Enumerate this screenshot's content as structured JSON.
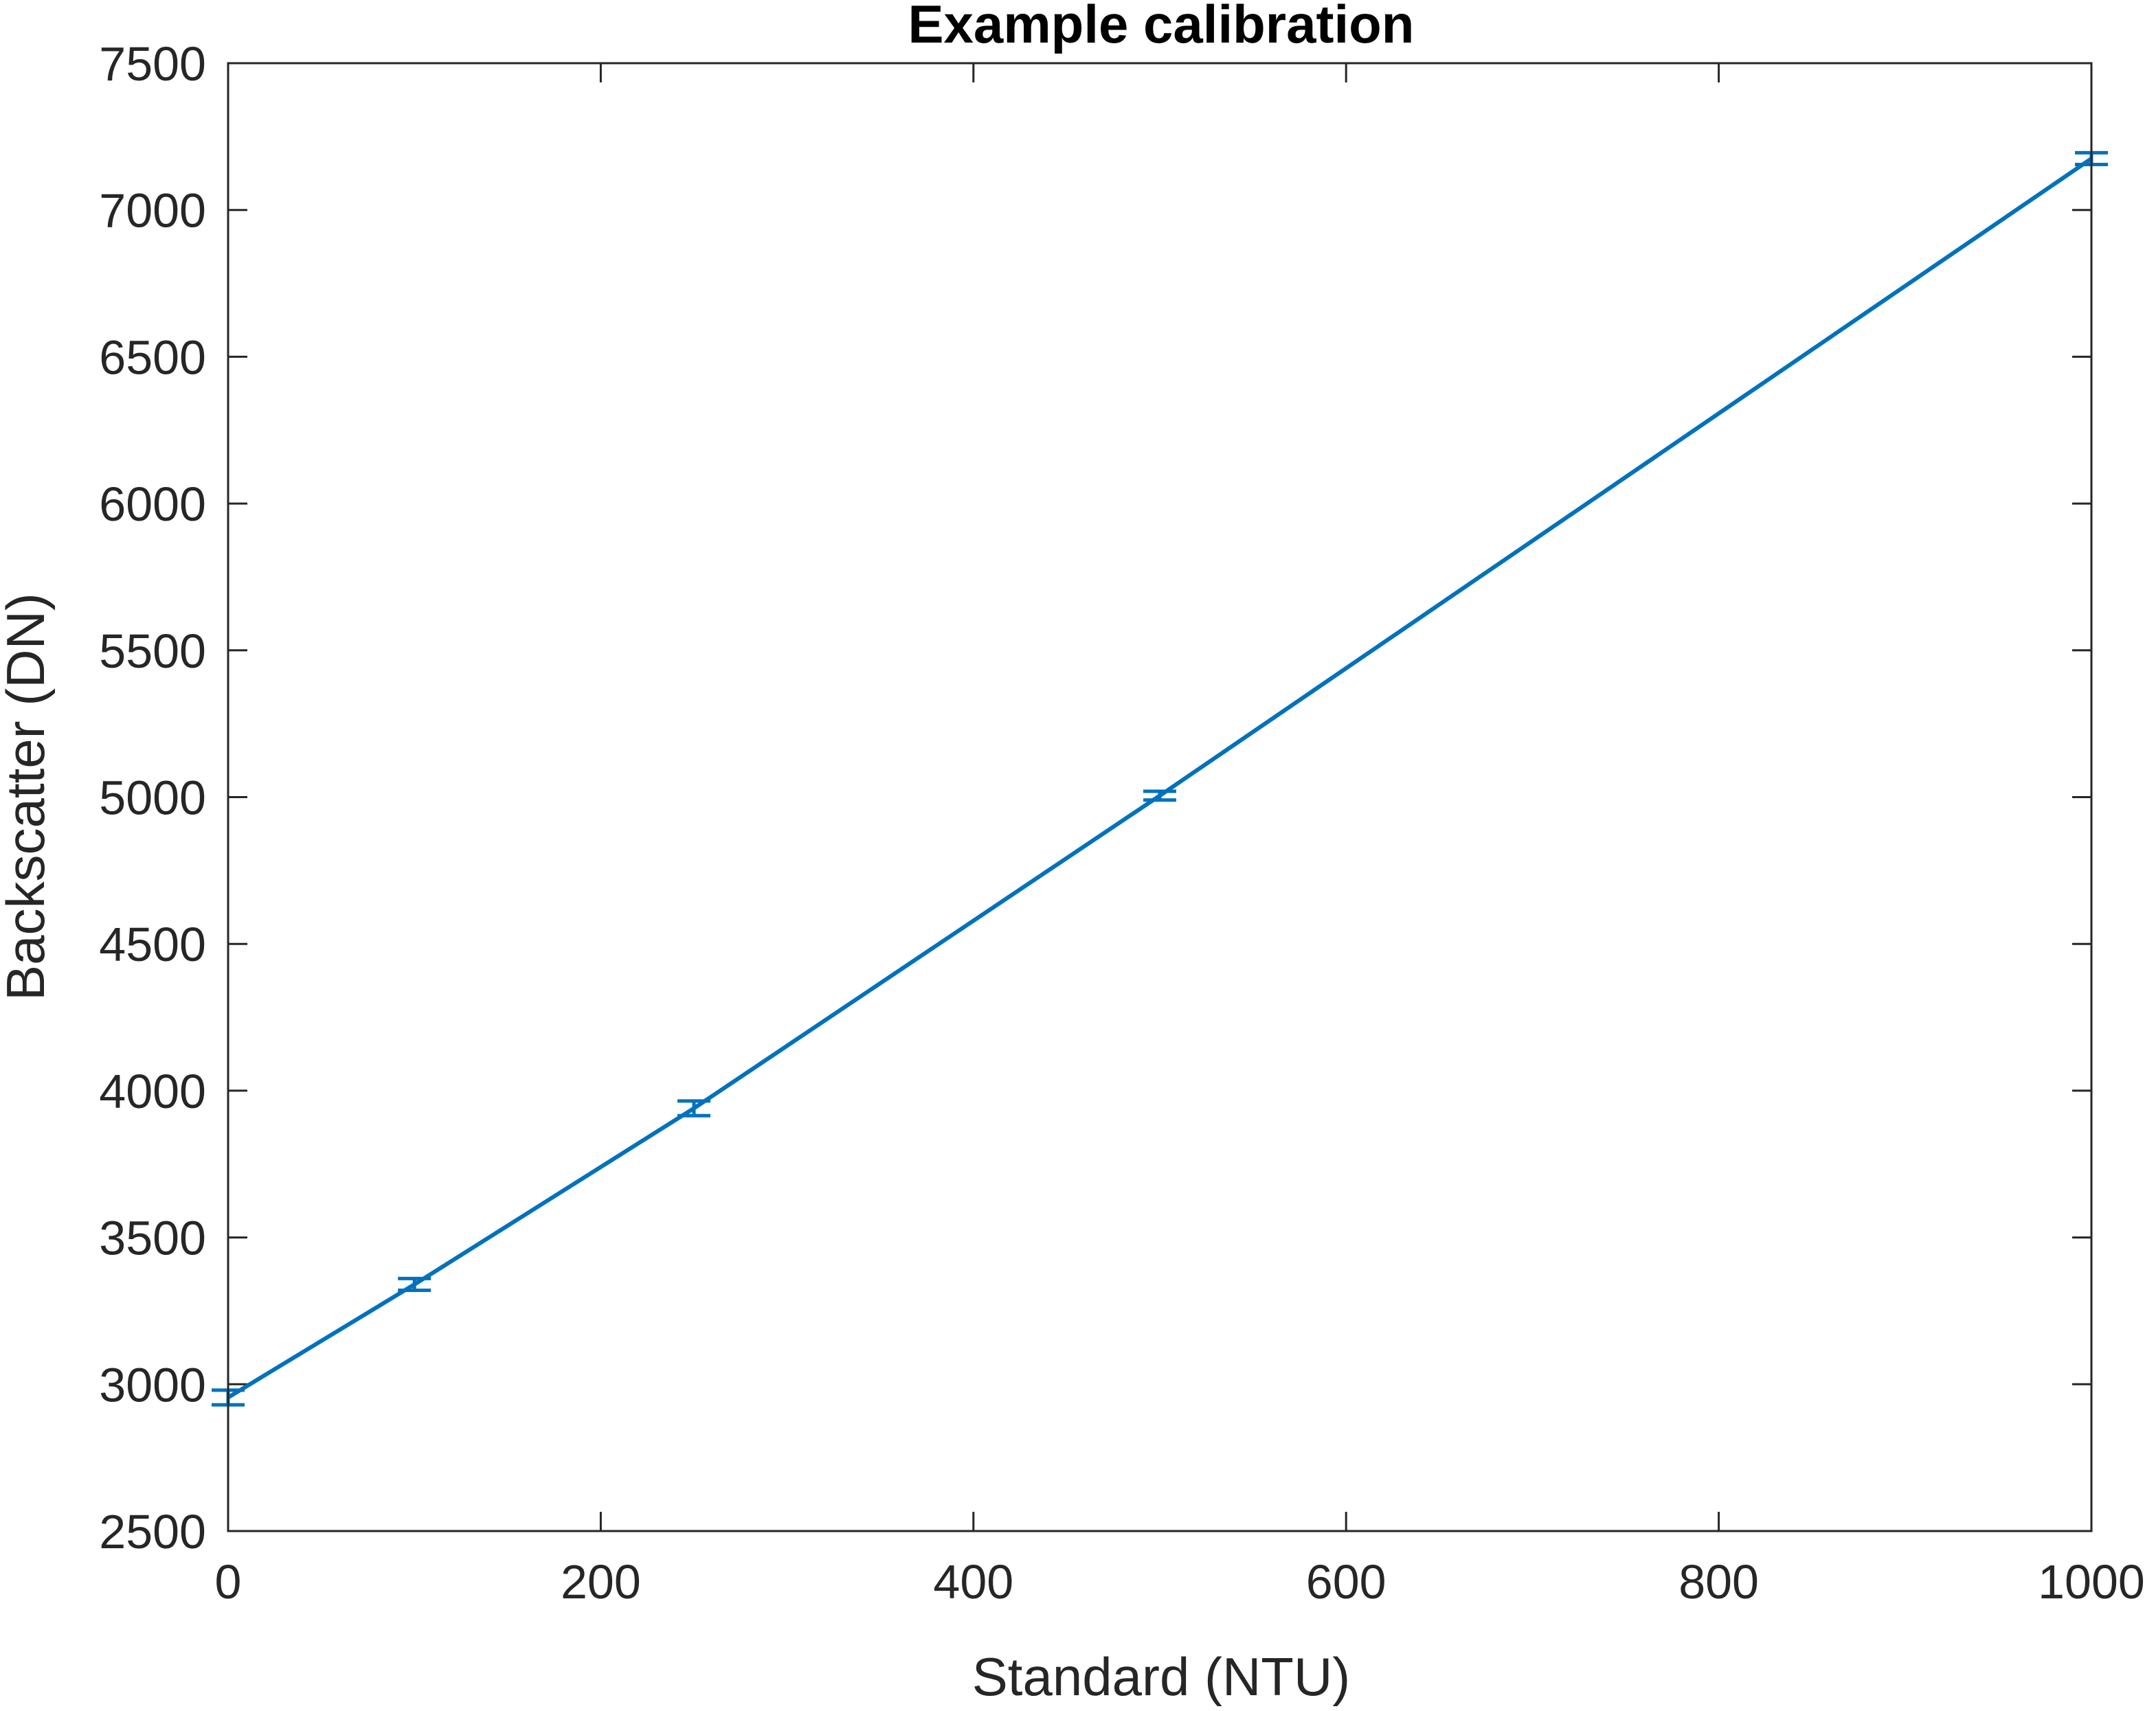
{
  "chart_data": {
    "type": "line",
    "title": "Example calibration",
    "xlabel": "Standard (NTU)",
    "ylabel": "Backscatter (DN)",
    "xlim": [
      0,
      1000
    ],
    "ylim": [
      2500,
      7500
    ],
    "xticks": [
      0,
      200,
      400,
      600,
      800,
      1000
    ],
    "yticks": [
      2500,
      3000,
      3500,
      4000,
      4500,
      5000,
      5500,
      6000,
      6500,
      7000,
      7500
    ],
    "grid": false,
    "legend": "none",
    "series": [
      {
        "color": "#0072BD",
        "x": [
          0,
          100,
          250,
          500,
          1000
        ],
        "y": [
          2955,
          3340,
          3940,
          5005,
          7175
        ],
        "error_low": [
          25,
          20,
          25,
          15,
          20
        ],
        "error_high": [
          25,
          20,
          25,
          15,
          20
        ]
      }
    ]
  }
}
